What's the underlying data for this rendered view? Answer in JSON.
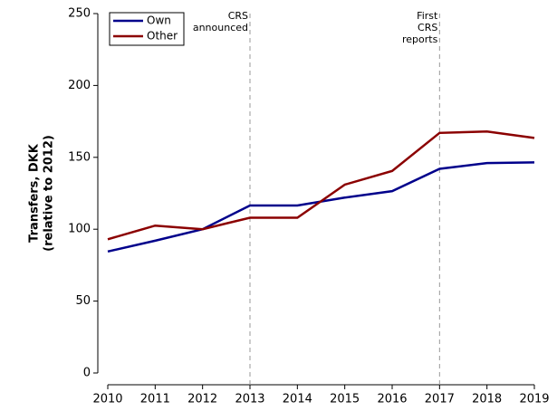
{
  "chart_data": {
    "type": "line",
    "x": [
      2010,
      2011,
      2012,
      2013,
      2014,
      2015,
      2016,
      2017,
      2018,
      2019
    ],
    "series": [
      {
        "name": "Own",
        "color": "#00008b",
        "values": [
          84.5,
          92,
          100,
          116.5,
          116.5,
          122,
          126.5,
          142,
          146,
          146.5
        ]
      },
      {
        "name": "Other",
        "color": "#8b0000",
        "values": [
          93,
          102.5,
          100,
          108,
          108,
          131,
          140.5,
          167,
          168,
          163.5
        ]
      }
    ],
    "xlim": [
      2010,
      2019
    ],
    "xticks": [
      2010,
      2011,
      2012,
      2013,
      2014,
      2015,
      2016,
      2017,
      2018,
      2019
    ],
    "ylim": [
      0,
      250
    ],
    "yticks": [
      0,
      50,
      100,
      150,
      200,
      250
    ],
    "y_label": [
      "Transfers, DKK",
      "(relative to 2012)"
    ],
    "annotations": [
      {
        "x": 2013,
        "text": [
          "CRS",
          "announced"
        ]
      },
      {
        "x": 2017,
        "text": [
          "First",
          "CRS",
          "reports"
        ]
      }
    ],
    "legend": "upper left"
  }
}
